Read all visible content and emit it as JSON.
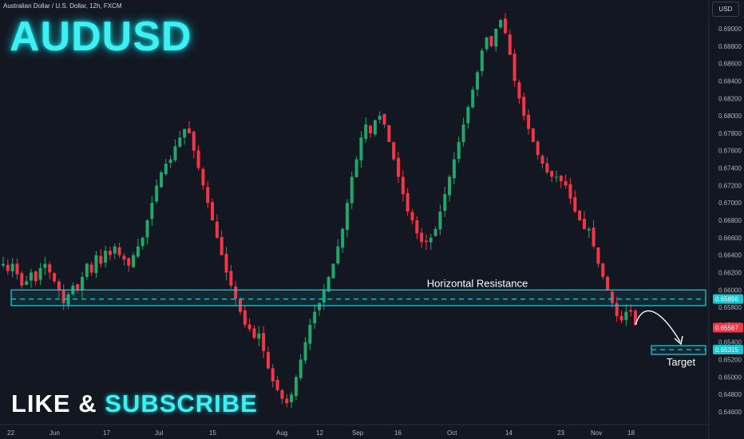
{
  "header": {
    "symbol_line": "Australian Dollar / U.S. Dollar, 12h, FXCM"
  },
  "overlay": {
    "title": "AUDUSD",
    "cta_like": "LIKE",
    "cta_amp": "&",
    "cta_subscribe": "SUBSCRIBE",
    "title_color": "#3ef0f2"
  },
  "currency_button": "USD",
  "chart_data": {
    "type": "candlestick",
    "y_axis_labels": [
      "0.69000",
      "0.68800",
      "0.68600",
      "0.68400",
      "0.68200",
      "0.68000",
      "0.67800",
      "0.67600",
      "0.67400",
      "0.67200",
      "0.67000",
      "0.66800",
      "0.66600",
      "0.66400",
      "0.66200",
      "0.66000",
      "0.65800",
      "0.65600",
      "0.65400",
      "0.65200",
      "0.65000",
      "0.64800",
      "0.64600"
    ],
    "ylim": [
      0.645,
      0.6922
    ],
    "x_axis_labels": [
      "22",
      "Jun",
      "17",
      "Jul",
      "15",
      "Aug",
      "12",
      "Sep",
      "16",
      "Oct",
      "14",
      "23",
      "Nov",
      "18"
    ],
    "path": [
      0.663,
      0.6622,
      0.663,
      0.6618,
      0.6605,
      0.661,
      0.662,
      0.661,
      0.6625,
      0.663,
      0.662,
      0.661,
      0.66,
      0.6585,
      0.6595,
      0.6605,
      0.66,
      0.6615,
      0.663,
      0.662,
      0.664,
      0.663,
      0.6645,
      0.664,
      0.665,
      0.664,
      0.6635,
      0.6628,
      0.664,
      0.665,
      0.666,
      0.668,
      0.67,
      0.672,
      0.6735,
      0.6745,
      0.675,
      0.6765,
      0.6775,
      0.6785,
      0.678,
      0.676,
      0.674,
      0.672,
      0.67,
      0.668,
      0.666,
      0.664,
      0.662,
      0.6605,
      0.659,
      0.6575,
      0.656,
      0.6555,
      0.6545,
      0.655,
      0.653,
      0.651,
      0.6495,
      0.6485,
      0.6475,
      0.647,
      0.648,
      0.65,
      0.652,
      0.654,
      0.656,
      0.6575,
      0.6585,
      0.66,
      0.6615,
      0.663,
      0.665,
      0.667,
      0.67,
      0.673,
      0.675,
      0.6775,
      0.679,
      0.678,
      0.6795,
      0.68,
      0.679,
      0.677,
      0.675,
      0.673,
      0.671,
      0.669,
      0.668,
      0.6665,
      0.6655,
      0.6655,
      0.666,
      0.667,
      0.669,
      0.671,
      0.673,
      0.675,
      0.677,
      0.679,
      0.681,
      0.683,
      0.685,
      0.6875,
      0.689,
      0.688,
      0.69,
      0.691,
      0.6895,
      0.687,
      0.684,
      0.682,
      0.68,
      0.6785,
      0.677,
      0.6755,
      0.6745,
      0.6735,
      0.673,
      0.673,
      0.6725,
      0.672,
      0.6705,
      0.669,
      0.668,
      0.667,
      0.667,
      0.665,
      0.663,
      0.6615,
      0.66,
      0.6585,
      0.657,
      0.6565,
      0.6575,
      0.6575,
      0.656
    ],
    "resistance_zone": {
      "label": "Horizontal Resistance",
      "level": 0.65896,
      "top": 0.66,
      "bottom": 0.6582
    },
    "target_zone": {
      "label": "Target",
      "level": 0.65315,
      "top": 0.6536,
      "bottom": 0.6526
    },
    "price_tags": [
      {
        "value": "0.65896",
        "color": "#18c6d0"
      },
      {
        "value": "0.65567",
        "color": "#f23645"
      },
      {
        "value": "0.65315",
        "color": "#18c6d0"
      }
    ],
    "up_color": "#22a66a",
    "down_color": "#f23645"
  }
}
